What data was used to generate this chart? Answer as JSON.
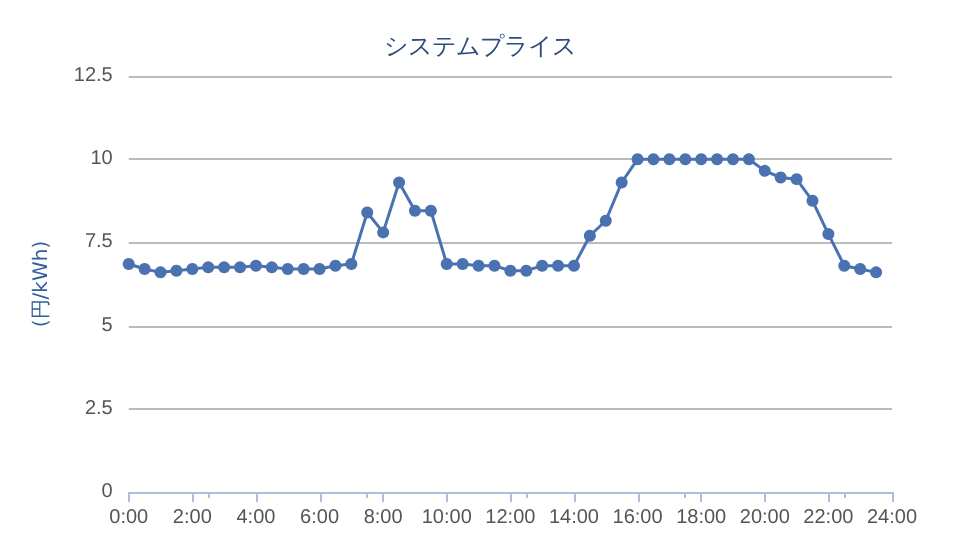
{
  "chart_data": {
    "type": "line",
    "title": "システムプライス",
    "ylabel": "(円/kWh)",
    "x": [
      0,
      0.5,
      1,
      1.5,
      2,
      2.5,
      3,
      3.5,
      4,
      4.5,
      5,
      5.5,
      6,
      6.5,
      7,
      7.5,
      8,
      8.5,
      9,
      9.5,
      10,
      10.5,
      11,
      11.5,
      12,
      12.5,
      13,
      13.5,
      14,
      14.5,
      15,
      15.5,
      16,
      16.5,
      17,
      17.5,
      18,
      18.5,
      19,
      19.5,
      20,
      20.5,
      21,
      21.5,
      22,
      22.5,
      23,
      23.5
    ],
    "series": [
      {
        "color": "#4a72b0",
        "values": [
          6.85,
          6.7,
          6.6,
          6.65,
          6.7,
          6.75,
          6.75,
          6.75,
          6.8,
          6.75,
          6.7,
          6.7,
          6.7,
          6.8,
          6.85,
          8.4,
          7.8,
          9.3,
          8.45,
          8.45,
          6.85,
          6.85,
          6.8,
          6.8,
          6.65,
          6.65,
          6.8,
          6.8,
          6.8,
          7.7,
          8.15,
          9.3,
          10,
          10,
          10,
          10,
          10,
          10,
          10,
          10,
          9.65,
          9.45,
          9.4,
          8.75,
          7.75,
          6.8,
          6.7,
          6.6
        ]
      }
    ],
    "xlim": [
      0,
      24
    ],
    "xticks": [
      {
        "value": 0,
        "label": "0:00"
      },
      {
        "value": 2,
        "label": "2:00"
      },
      {
        "value": 4,
        "label": "4:00"
      },
      {
        "value": 6,
        "label": "6:00"
      },
      {
        "value": 8,
        "label": "8:00"
      },
      {
        "value": 10,
        "label": "10:00"
      },
      {
        "value": 12,
        "label": "12:00"
      },
      {
        "value": 14,
        "label": "14:00"
      },
      {
        "value": 16,
        "label": "16:00"
      },
      {
        "value": 18,
        "label": "18:00"
      },
      {
        "value": 20,
        "label": "20:00"
      },
      {
        "value": 22,
        "label": "22:00"
      },
      {
        "value": 24,
        "label": "24:00"
      }
    ],
    "ylim": [
      0,
      12.5
    ],
    "yticks": [
      0,
      2.5,
      5,
      7.5,
      10,
      12.5
    ],
    "grid": "y",
    "marker": "circle",
    "line_style": "solid"
  }
}
